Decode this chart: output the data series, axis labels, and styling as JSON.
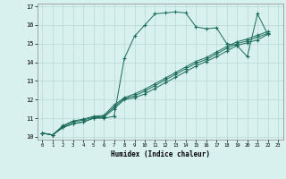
{
  "xlabel": "Humidex (Indice chaleur)",
  "bg_color": "#d8f0ee",
  "grid_color": "#b8d8d4",
  "line_color": "#1a6b5a",
  "xlim": [
    -0.5,
    23.5
  ],
  "ylim": [
    9.85,
    17.15
  ],
  "yticks": [
    10,
    11,
    12,
    13,
    14,
    15,
    16,
    17
  ],
  "xticks": [
    0,
    1,
    2,
    3,
    4,
    5,
    6,
    7,
    8,
    9,
    10,
    11,
    12,
    13,
    14,
    15,
    16,
    17,
    18,
    19,
    20,
    21,
    22,
    23
  ],
  "xtick_labels": [
    "0",
    "1",
    "2",
    "3",
    "4",
    "5",
    "6",
    "7",
    "8",
    "9",
    "10",
    "11",
    "12",
    "13",
    "14",
    "15",
    "16",
    "17",
    "18",
    "19",
    "20",
    "21",
    "22",
    "23"
  ],
  "series": [
    [
      10.2,
      10.1,
      10.5,
      10.7,
      10.8,
      11.0,
      11.0,
      11.1,
      14.2,
      15.4,
      16.0,
      16.6,
      16.65,
      16.7,
      16.65,
      15.9,
      15.8,
      15.85,
      15.0,
      14.9,
      14.3,
      16.6,
      15.5,
      null
    ],
    [
      10.2,
      10.1,
      10.5,
      10.7,
      10.8,
      11.0,
      11.05,
      11.5,
      12.0,
      12.1,
      12.3,
      12.6,
      12.9,
      13.2,
      13.5,
      13.8,
      14.05,
      14.3,
      14.6,
      14.9,
      15.05,
      15.2,
      15.5,
      null
    ],
    [
      10.2,
      10.1,
      10.55,
      10.8,
      10.9,
      11.05,
      11.1,
      11.6,
      12.05,
      12.2,
      12.45,
      12.75,
      13.05,
      13.35,
      13.65,
      13.95,
      14.15,
      14.45,
      14.75,
      15.0,
      15.15,
      15.35,
      15.55,
      null
    ],
    [
      10.2,
      10.1,
      10.6,
      10.85,
      10.95,
      11.1,
      11.15,
      11.7,
      12.1,
      12.3,
      12.55,
      12.85,
      13.15,
      13.45,
      13.75,
      14.05,
      14.25,
      14.55,
      14.85,
      15.1,
      15.25,
      15.45,
      15.65,
      null
    ]
  ]
}
